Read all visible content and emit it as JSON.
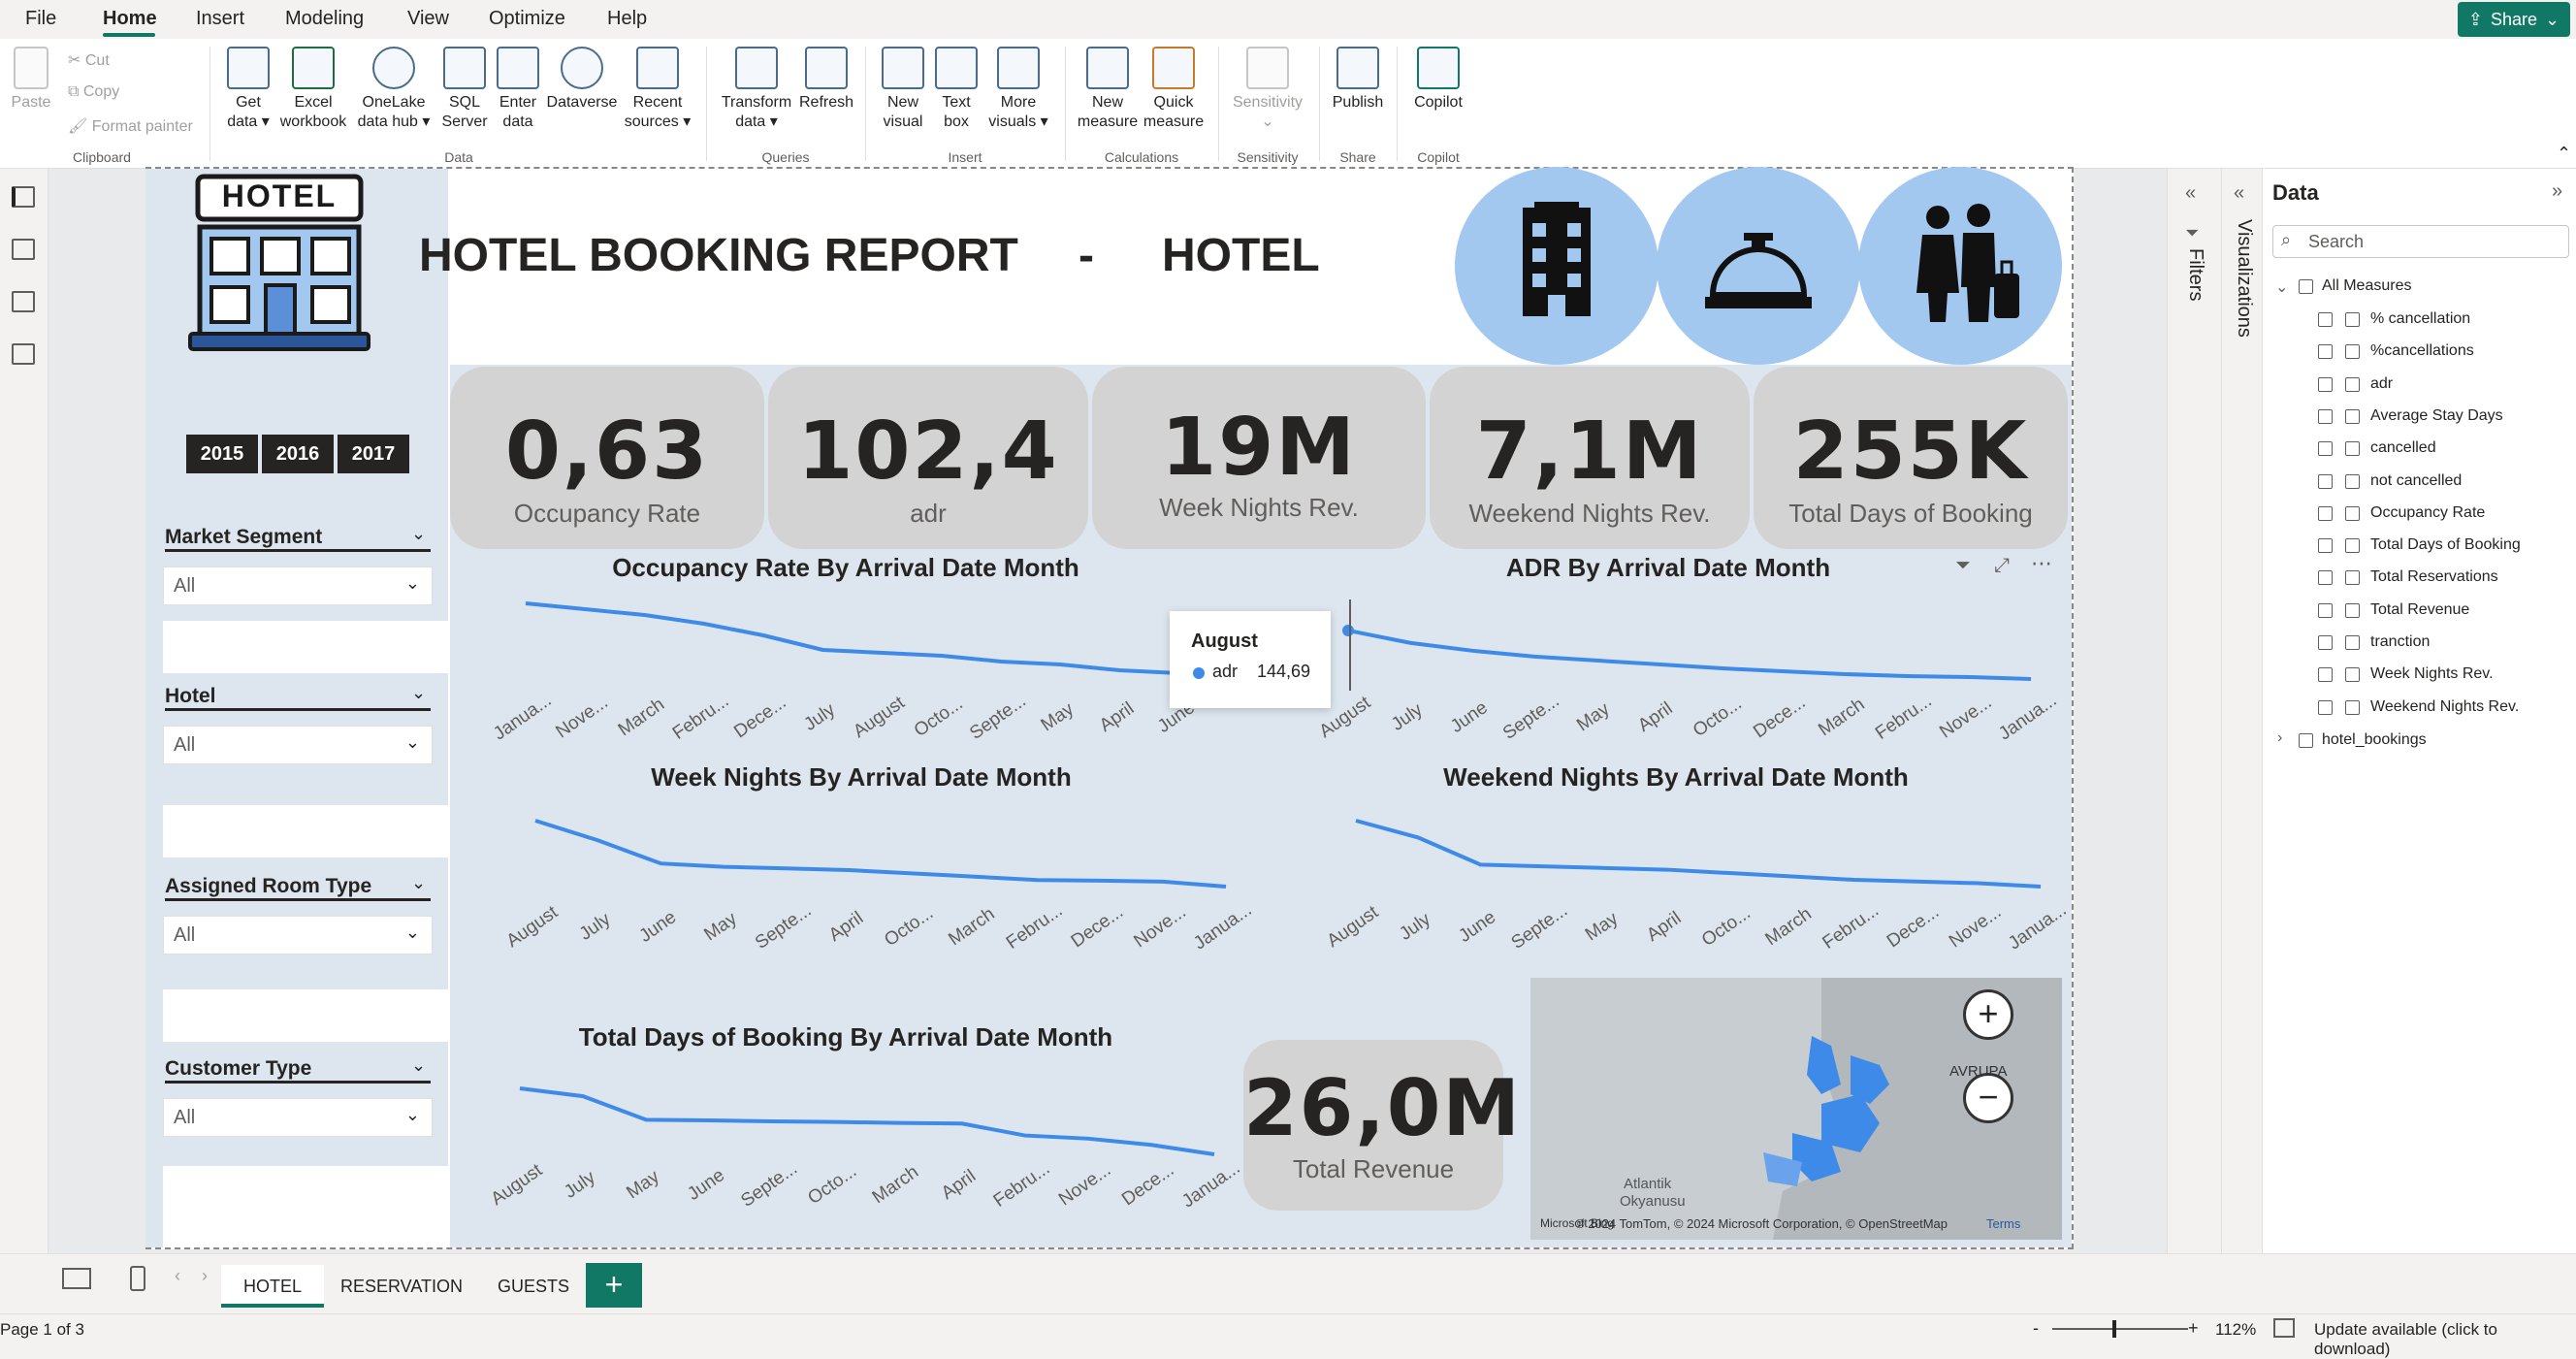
{
  "menu": {
    "items": [
      "File",
      "Home",
      "Insert",
      "Modeling",
      "View",
      "Optimize",
      "Help"
    ],
    "active": "Home",
    "share_label": "Share"
  },
  "ribbon": {
    "clipboard": {
      "paste": "Paste",
      "cut": "Cut",
      "copy": "Copy",
      "format_painter": "Format painter",
      "group": "Clipboard"
    },
    "data": {
      "get_data": [
        "Get",
        "data ▾"
      ],
      "excel": [
        "Excel",
        "workbook"
      ],
      "onelake": [
        "OneLake",
        "data hub ▾"
      ],
      "sql": [
        "SQL",
        "Server"
      ],
      "enter": [
        "Enter",
        "data"
      ],
      "dataverse": [
        "Dataverse"
      ],
      "recent": [
        "Recent",
        "sources ▾"
      ],
      "group": "Data"
    },
    "queries": {
      "transform": [
        "Transform",
        "data ▾"
      ],
      "refresh": [
        "Refresh"
      ],
      "group": "Queries"
    },
    "insert": {
      "new_visual": [
        "New",
        "visual"
      ],
      "text_box": [
        "Text",
        "box"
      ],
      "more_visuals": [
        "More",
        "visuals ▾"
      ],
      "group": "Insert"
    },
    "calculations": {
      "new_measure": [
        "New",
        "measure"
      ],
      "quick_measure": [
        "Quick",
        "measure"
      ],
      "group": "Calculations"
    },
    "sensitivity": {
      "label": [
        "Sensitivity",
        "⌄"
      ],
      "group": "Sensitivity"
    },
    "share": {
      "publish": [
        "Publish"
      ],
      "group": "Share"
    },
    "copilot": {
      "label": [
        "Copilot"
      ],
      "group": "Copilot"
    }
  },
  "report": {
    "logo_text": "HOTEL",
    "title": "HOTEL BOOKING REPORT",
    "title_sep": "-",
    "title_hotel": "HOTEL",
    "years": [
      "2015",
      "2016",
      "2017"
    ],
    "kpis": [
      {
        "value": "0,63",
        "label": "Occupancy Rate"
      },
      {
        "value": "102,4",
        "label": "adr"
      },
      {
        "value": "19M",
        "label": "Week Nights Rev."
      },
      {
        "value": "7,1M",
        "label": "Weekend Nights Rev."
      },
      {
        "value": "255K",
        "label": "Total Days of Booking"
      }
    ],
    "slicers": [
      {
        "title": "Market Segment",
        "value": "All"
      },
      {
        "title": "Hotel",
        "value": "All"
      },
      {
        "title": "Assigned Room Type",
        "value": "All"
      },
      {
        "title": "Customer Type",
        "value": "All"
      }
    ],
    "total_revenue": {
      "value": "26,0M",
      "label": "Total Revenue"
    },
    "tooltip": {
      "title": "August",
      "series": "adr",
      "value": "144,69"
    },
    "map": {
      "label_avrupa": "AVRUPA",
      "label_ocean1": "Atlantik",
      "label_ocean2": "Okyanusu",
      "attribution": "© 2024 TomTom, © 2024 Microsoft Corporation, © OpenStreetMap",
      "terms": "Terms",
      "ms_logo": "Microsoft Bing"
    }
  },
  "chart_data": [
    {
      "type": "line",
      "title": "Occupancy Rate By Arrival Date Month",
      "categories": [
        "Janua...",
        "Nove...",
        "March",
        "Febru...",
        "Dece...",
        "July",
        "August",
        "Octo...",
        "Septe...",
        "May",
        "April",
        "June"
      ],
      "values": [
        0.7,
        0.69,
        0.68,
        0.665,
        0.645,
        0.62,
        0.615,
        0.61,
        0.6,
        0.595,
        0.585,
        0.58
      ]
    },
    {
      "type": "line",
      "title": "ADR By Arrival Date Month",
      "categories": [
        "August",
        "July",
        "June",
        "Septe...",
        "May",
        "April",
        "Octo...",
        "Dece...",
        "March",
        "Febru...",
        "Nove...",
        "Janua..."
      ],
      "values": [
        144.69,
        132,
        124,
        118,
        114,
        110,
        106,
        103,
        100,
        98,
        97,
        95
      ]
    },
    {
      "type": "line",
      "title": "Week Nights By Arrival Date Month",
      "categories": [
        "August",
        "July",
        "June",
        "May",
        "Septe...",
        "April",
        "Octo...",
        "March",
        "Febru...",
        "Dece...",
        "Nove...",
        "Janua..."
      ],
      "values": [
        1000,
        940,
        870,
        860,
        855,
        850,
        840,
        830,
        820,
        818,
        815,
        800
      ]
    },
    {
      "type": "line",
      "title": "Weekend Nights By Arrival Date Month",
      "categories": [
        "August",
        "July",
        "June",
        "Septe...",
        "May",
        "April",
        "Octo...",
        "March",
        "Febru...",
        "Dece...",
        "Nove...",
        "Janua..."
      ],
      "values": [
        1000,
        950,
        870,
        865,
        860,
        855,
        845,
        835,
        825,
        820,
        815,
        805
      ]
    },
    {
      "type": "line",
      "title": "Total Days of Booking By Arrival Date Month",
      "categories": [
        "August",
        "July",
        "May",
        "June",
        "Septe...",
        "Octo...",
        "March",
        "April",
        "Febru...",
        "Nove...",
        "Dece...",
        "Janua..."
      ],
      "values": [
        1000,
        975,
        900,
        898,
        895,
        893,
        890,
        888,
        850,
        840,
        820,
        790
      ]
    }
  ],
  "panes": {
    "filters": "Filters",
    "visualizations": "Visualizations",
    "data": {
      "title": "Data",
      "search_placeholder": "Search",
      "table": "All Measures",
      "fields": [
        "% cancellation",
        "%cancellations",
        "adr",
        "Average Stay Days",
        "cancelled",
        "not cancelled",
        "Occupancy Rate",
        "Total Days of Booking",
        "Total Reservations",
        "Total Revenue",
        "tranction",
        "Week Nights Rev.",
        "Weekend Nights Rev."
      ],
      "other_table": "hotel_bookings"
    }
  },
  "tabs": [
    "HOTEL",
    "RESERVATION",
    "GUESTS"
  ],
  "status": {
    "page": "Page 1 of 3",
    "zoom": "112%",
    "update": "Update available (click to download)"
  },
  "colors": {
    "accent": "#117865",
    "line": "#3d8ae8",
    "kpi_bg": "#d3d3d3",
    "circle": "#a3c8f0"
  }
}
